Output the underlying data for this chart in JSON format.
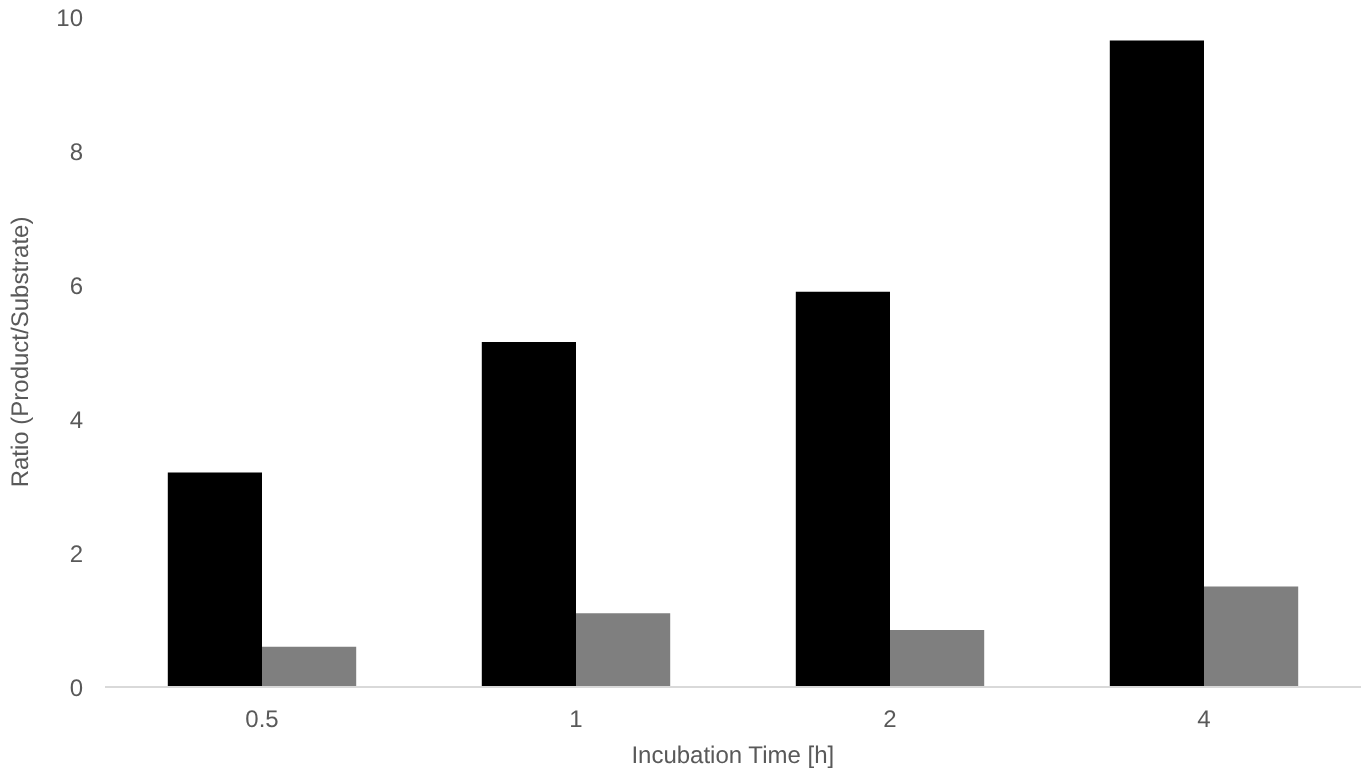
{
  "chart_data": {
    "type": "bar",
    "xlabel": "Incubation Time [h]",
    "ylabel": "Ratio (Product/Substrate)",
    "categories": [
      "0.5",
      "1",
      "2",
      "4"
    ],
    "series": [
      {
        "color": "#000000",
        "values": [
          3.2,
          5.15,
          5.9,
          9.65
        ]
      },
      {
        "color": "#7f7f7f",
        "values": [
          0.6,
          1.1,
          0.85,
          1.5
        ]
      }
    ],
    "ylim": [
      0,
      10
    ],
    "yticks": [
      0,
      2,
      4,
      6,
      8,
      10
    ],
    "grid": false
  }
}
